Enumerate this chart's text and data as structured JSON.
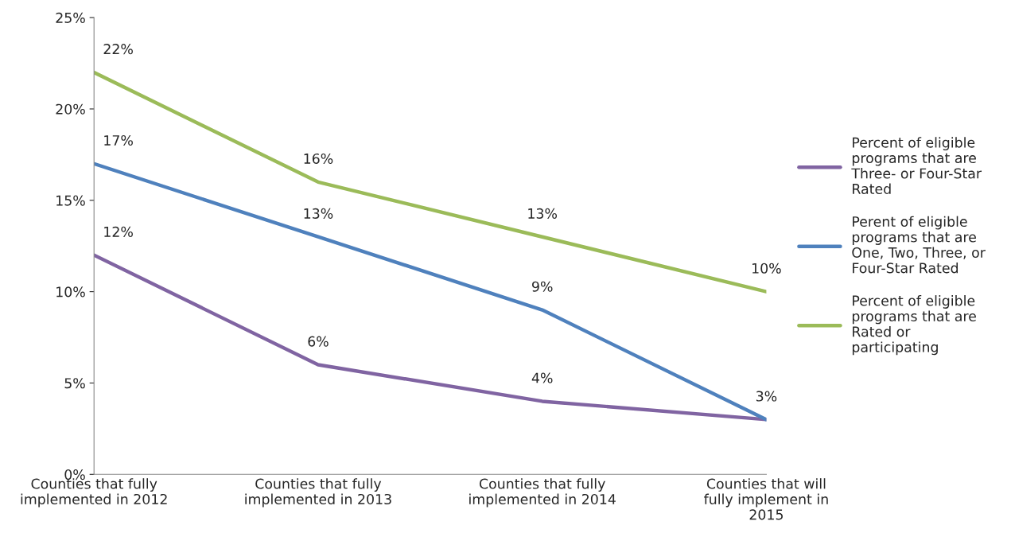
{
  "chart_data": {
    "type": "line",
    "categories": [
      "Counties that fully implemented in 2012",
      "Counties that fully implemented in 2013",
      "Counties that fully implemented in 2014",
      "Counties that will fully implement in 2015"
    ],
    "series": [
      {
        "name": "Percent of eligible programs that are Three- or Four-Star Rated",
        "color": "#8064a2",
        "values": [
          12,
          6,
          4,
          3
        ],
        "value_labels": [
          "12%",
          "6%",
          "4%",
          null
        ]
      },
      {
        "name": "Perent of eligible programs that are One, Two, Three, or Four-Star Rated",
        "color": "#4f81bd",
        "values": [
          17,
          13,
          9,
          3
        ],
        "value_labels": [
          "17%",
          "13%",
          "9%",
          "3%"
        ]
      },
      {
        "name": "Percent of eligible programs that are Rated or participating",
        "color": "#9bbb59",
        "values": [
          22,
          16,
          13,
          10
        ],
        "value_labels": [
          "22%",
          "16%",
          "13%",
          "10%"
        ]
      }
    ],
    "ylim": [
      0,
      25
    ],
    "yticks": [
      {
        "value": 0,
        "label": "0%"
      },
      {
        "value": 5,
        "label": "5%"
      },
      {
        "value": 10,
        "label": "10%"
      },
      {
        "value": 15,
        "label": "15%"
      },
      {
        "value": 20,
        "label": "20%"
      },
      {
        "value": 25,
        "label": "25%"
      }
    ],
    "grid": false,
    "legend": "right",
    "marker": "none",
    "line_style": "solid"
  }
}
